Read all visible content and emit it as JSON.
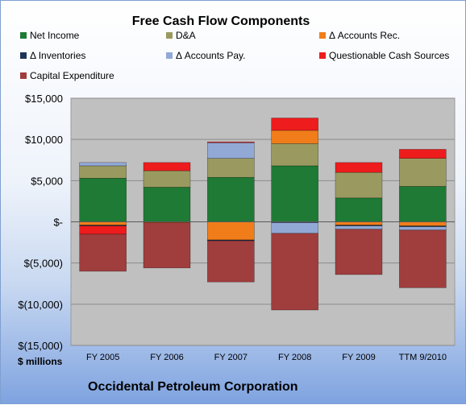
{
  "chart_data": {
    "type": "bar",
    "stacked": true,
    "title": "Free Cash Flow Components",
    "ylabel": "$ millions",
    "ylim": [
      -15000,
      15000
    ],
    "yticks": [
      15000,
      10000,
      5000,
      0,
      -5000,
      -10000,
      -15000
    ],
    "ytick_labels": [
      "$15,000",
      "$10,000",
      "$5,000",
      "$-",
      "$(5,000)",
      "$(10,000)",
      "$(15,000)"
    ],
    "categories": [
      "FY 2005",
      "FY 2006",
      "FY 2007",
      "FY 2008",
      "FY 2009",
      "TTM 9/2010"
    ],
    "legend_position": "top",
    "series": [
      {
        "name": "Net Income",
        "color": "#1e7a34",
        "values": [
          5300,
          4200,
          5400,
          6800,
          2900,
          4300
        ]
      },
      {
        "name": "D&A",
        "color": "#9a9a60",
        "values": [
          1500,
          2000,
          2300,
          2700,
          3100,
          3400
        ]
      },
      {
        "name": "Δ Accounts Rec.",
        "color": "#f07d1a",
        "values": [
          -400,
          -100,
          -2200,
          1600,
          -400,
          -500
        ]
      },
      {
        "name": "Δ Inventories",
        "color": "#1c3556",
        "values": [
          -100,
          0,
          -100,
          -100,
          -100,
          -100
        ]
      },
      {
        "name": "Δ Accounts Pay.",
        "color": "#92a9d6",
        "values": [
          400,
          0,
          1900,
          -1300,
          -400,
          -400
        ]
      },
      {
        "name": "Questionable Cash Sources",
        "color": "#ee1c1c",
        "values": [
          -1000,
          1000,
          100,
          1500,
          1200,
          1100
        ]
      },
      {
        "name": "Capital Expenditure",
        "color": "#a03d3d",
        "values": [
          -4500,
          -5500,
          -5000,
          -9300,
          -5500,
          -7000
        ]
      }
    ]
  },
  "footer": {
    "units": "$ millions",
    "company": "Occidental Petroleum Corporation"
  }
}
